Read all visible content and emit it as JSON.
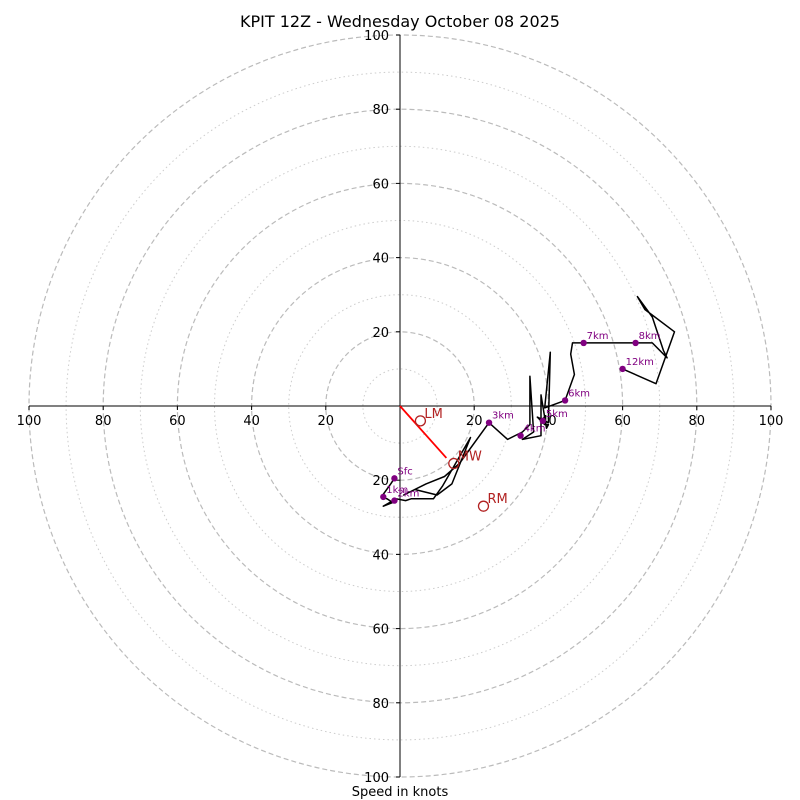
{
  "chart_data": {
    "type": "hodograph",
    "title": "KPIT 12Z - Wednesday October 08 2025",
    "xlabel": "Speed in knots",
    "range": [
      -100,
      100
    ],
    "ring_speeds_major": [
      20,
      40,
      60,
      80,
      100
    ],
    "ring_speeds_minor": [
      10,
      30,
      50,
      70,
      90
    ],
    "x_ticks": [
      {
        "value": -100,
        "label": "100"
      },
      {
        "value": -80,
        "label": "80"
      },
      {
        "value": -60,
        "label": "60"
      },
      {
        "value": -40,
        "label": "40"
      },
      {
        "value": -20,
        "label": "20"
      },
      {
        "value": 20,
        "label": "20"
      },
      {
        "value": 40,
        "label": "40"
      },
      {
        "value": 60,
        "label": "60"
      },
      {
        "value": 80,
        "label": "80"
      },
      {
        "value": 100,
        "label": "100"
      }
    ],
    "y_ticks": [
      {
        "value": 100,
        "label": "100"
      },
      {
        "value": 80,
        "label": "80"
      },
      {
        "value": 60,
        "label": "60"
      },
      {
        "value": 40,
        "label": "40"
      },
      {
        "value": 20,
        "label": "20"
      },
      {
        "value": -20,
        "label": "20"
      },
      {
        "value": -40,
        "label": "40"
      },
      {
        "value": -60,
        "label": "60"
      },
      {
        "value": -80,
        "label": "80"
      },
      {
        "value": -100,
        "label": "100"
      }
    ],
    "trace": [
      [
        -1.5,
        -19.5
      ],
      [
        -2.5,
        -21
      ],
      [
        -5,
        -24.5
      ],
      [
        -3.5,
        -25
      ],
      [
        -2,
        -26
      ],
      [
        -4.5,
        -27
      ],
      [
        -1,
        -25
      ],
      [
        1.5,
        -25.5
      ],
      [
        3,
        -25
      ],
      [
        9,
        -25
      ],
      [
        11.5,
        -21.5
      ],
      [
        19,
        -8.5
      ],
      [
        14,
        -21
      ],
      [
        10,
        -24
      ],
      [
        4,
        -22.5
      ],
      [
        1,
        -24
      ],
      [
        7,
        -21
      ],
      [
        12,
        -19
      ],
      [
        16,
        -15.5
      ],
      [
        24,
        -4.5
      ],
      [
        29,
        -9
      ],
      [
        33,
        -7
      ],
      [
        35,
        -5
      ],
      [
        35,
        8
      ],
      [
        36,
        -7
      ],
      [
        33,
        -9
      ],
      [
        38,
        -8
      ],
      [
        38,
        3
      ],
      [
        39.5,
        -6
      ],
      [
        40,
        -5
      ],
      [
        39,
        -5
      ],
      [
        38,
        -4
      ],
      [
        37,
        -3
      ],
      [
        40,
        -4.5
      ],
      [
        40.5,
        14.5
      ],
      [
        39,
        -0.5
      ],
      [
        44.5,
        1.5
      ],
      [
        47,
        8.5
      ],
      [
        46,
        14
      ],
      [
        46.5,
        17
      ],
      [
        49.5,
        17
      ],
      [
        54,
        17
      ],
      [
        60,
        17
      ],
      [
        63.5,
        17
      ],
      [
        68,
        17
      ],
      [
        72,
        13
      ],
      [
        71,
        15
      ],
      [
        68,
        24
      ],
      [
        64,
        29.5
      ],
      [
        66,
        26
      ],
      [
        74,
        20
      ],
      [
        69,
        6
      ],
      [
        60,
        10
      ]
    ],
    "height_markers": [
      {
        "label": "Sfc",
        "u": -1.5,
        "v": -19.5
      },
      {
        "label": "1km",
        "u": -4.5,
        "v": -24.5
      },
      {
        "label": "2km",
        "u": -1.5,
        "v": -25.5
      },
      {
        "label": "3km",
        "u": 24,
        "v": -4.5
      },
      {
        "label": "4km",
        "u": 32.5,
        "v": -8
      },
      {
        "label": "5km",
        "u": 38.5,
        "v": -4
      },
      {
        "label": "6km",
        "u": 44.5,
        "v": 1.5
      },
      {
        "label": "7km",
        "u": 49.5,
        "v": 17
      },
      {
        "label": "8km",
        "u": 63.5,
        "v": 17
      },
      {
        "label": "12km",
        "u": 60,
        "v": 10
      }
    ],
    "storm_points": [
      {
        "label": "LM",
        "u": 5.5,
        "v": -4
      },
      {
        "label": "MW",
        "u": 14.5,
        "v": -15.5
      },
      {
        "label": "RM",
        "u": 22.5,
        "v": -27
      }
    ],
    "shear_vector": {
      "from": [
        0,
        0
      ],
      "to": [
        12.5,
        -14
      ]
    },
    "colors": {
      "trace": "#000000",
      "marker": "#800080",
      "storm": "#b22222",
      "shear": "#ff0000",
      "ring": "#bbbbbb"
    }
  }
}
